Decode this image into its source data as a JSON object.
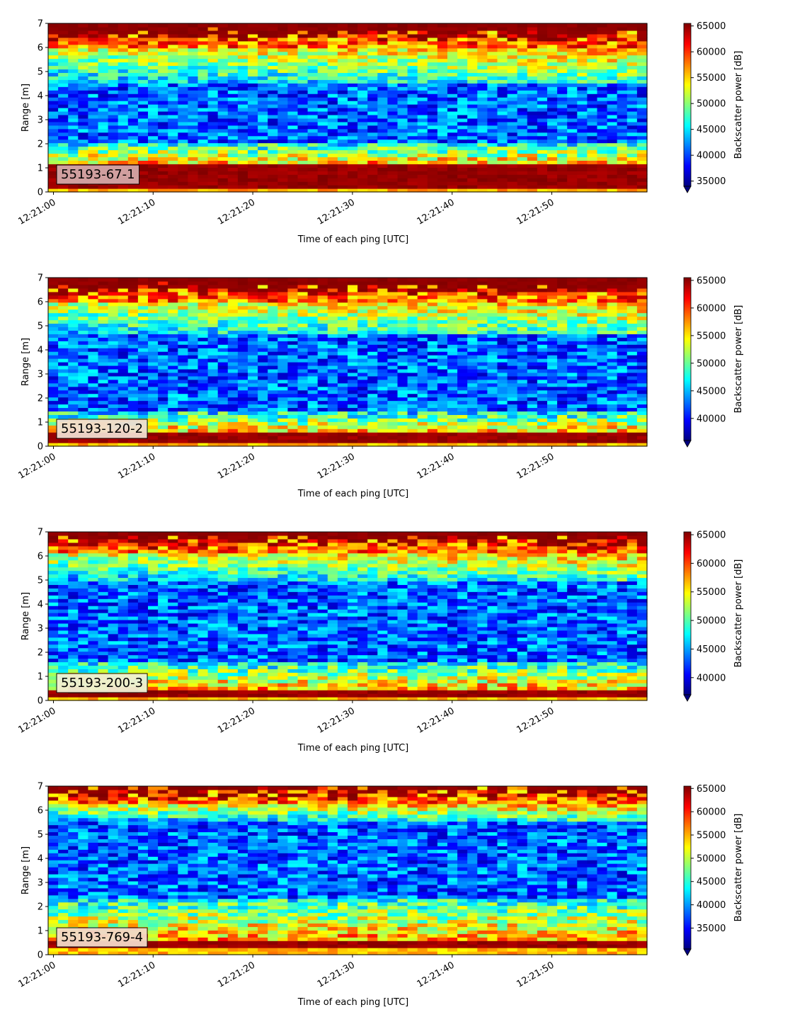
{
  "chart_data": [
    {
      "type": "heatmap",
      "label": "55193-67-1",
      "label_box_color": "#d4a8a8",
      "xlabel": "Time of each ping [UTC]",
      "ylabel": "Range [m]",
      "x_ticks": [
        "12:21:00",
        "12:21:10",
        "12:21:20",
        "12:21:30",
        "12:21:40",
        "12:21:50"
      ],
      "x_range_s": [
        0,
        60
      ],
      "y_ticks": [
        0,
        1,
        2,
        3,
        4,
        5,
        6,
        7
      ],
      "ylim": [
        0,
        7
      ],
      "colorbar_label": "Backscatter power [dB]",
      "colorbar_ticks": [
        35000,
        40000,
        45000,
        50000,
        55000,
        60000,
        65000
      ],
      "clim": [
        34000,
        65500
      ],
      "colormap": "jet",
      "colorbar_extend": "min",
      "profile": {
        "bottom_band": [
          0.2,
          1.15
        ],
        "bright_band": [
          1.15,
          2.0
        ],
        "dark_band": [
          2.0,
          4.5
        ],
        "mid_band": [
          4.5,
          6.0
        ],
        "top_band": [
          6.0,
          7.0
        ]
      },
      "seed": 11
    },
    {
      "type": "heatmap",
      "label": "55193-120-2",
      "label_box_color": "#f1ddd0",
      "xlabel": "Time of each ping [UTC]",
      "ylabel": "Range [m]",
      "x_ticks": [
        "12:21:00",
        "12:21:10",
        "12:21:20",
        "12:21:30",
        "12:21:40",
        "12:21:50"
      ],
      "x_range_s": [
        0,
        60
      ],
      "y_ticks": [
        0,
        1,
        2,
        3,
        4,
        5,
        6,
        7
      ],
      "ylim": [
        0,
        7
      ],
      "colorbar_label": "Backscatter power [dB]",
      "colorbar_ticks": [
        40000,
        45000,
        50000,
        55000,
        60000,
        65000
      ],
      "clim": [
        36000,
        65500
      ],
      "colormap": "jet",
      "colorbar_extend": "min",
      "profile": {
        "bottom_band": [
          0.1,
          0.55
        ],
        "bright_band": [
          0.55,
          1.4
        ],
        "dark_band": [
          1.4,
          4.6
        ],
        "mid_band": [
          4.6,
          6.0
        ],
        "top_band": [
          6.0,
          7.0
        ]
      },
      "seed": 23
    },
    {
      "type": "heatmap",
      "label": "55193-200-3",
      "label_box_color": "#eef0d4",
      "xlabel": "Time of each ping [UTC]",
      "ylabel": "Range [m]",
      "x_ticks": [
        "12:21:00",
        "12:21:10",
        "12:21:20",
        "12:21:30",
        "12:21:40",
        "12:21:50"
      ],
      "x_range_s": [
        0,
        60
      ],
      "y_ticks": [
        0,
        1,
        2,
        3,
        4,
        5,
        6,
        7
      ],
      "ylim": [
        0,
        7
      ],
      "colorbar_label": "Backscatter power [dB]",
      "colorbar_ticks": [
        40000,
        45000,
        50000,
        55000,
        60000,
        65000
      ],
      "clim": [
        37000,
        65500
      ],
      "colormap": "jet",
      "colorbar_extend": "min",
      "profile": {
        "bottom_band": [
          0.1,
          0.45
        ],
        "bright_band": [
          0.45,
          1.6
        ],
        "dark_band": [
          1.6,
          5.0
        ],
        "mid_band": [
          5.0,
          6.1
        ],
        "top_band": [
          6.1,
          7.0
        ]
      },
      "seed": 37
    },
    {
      "type": "heatmap",
      "label": "55193-769-4",
      "label_box_color": "#f3d9c8",
      "xlabel": "Time of each ping [UTC]",
      "ylabel": "Range [m]",
      "x_ticks": [
        "12:21:00",
        "12:21:10",
        "12:21:20",
        "12:21:30",
        "12:21:40",
        "12:21:50"
      ],
      "x_range_s": [
        0,
        60
      ],
      "y_ticks": [
        0,
        1,
        2,
        3,
        4,
        5,
        6,
        7
      ],
      "ylim": [
        0,
        7
      ],
      "colorbar_label": "Backscatter power [dB]",
      "colorbar_ticks": [
        35000,
        40000,
        45000,
        50000,
        55000,
        60000,
        65000
      ],
      "clim": [
        30500,
        65500
      ],
      "colormap": "jet",
      "colorbar_extend": "min",
      "profile": {
        "bottom_band": [
          0.25,
          0.65
        ],
        "bright_band": [
          0.65,
          2.4
        ],
        "dark_band": [
          2.4,
          5.6
        ],
        "mid_band": [
          5.6,
          6.2
        ],
        "top_band": [
          6.2,
          7.0
        ]
      },
      "seed": 53
    }
  ]
}
